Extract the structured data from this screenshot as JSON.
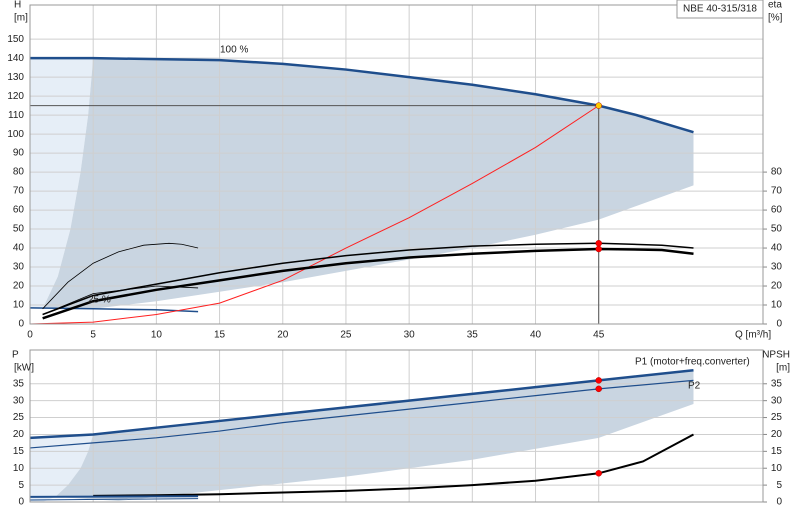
{
  "chart_data": [
    {
      "type": "line",
      "title": "NBE 40-315/318",
      "ylabel": "H",
      "yunit": "[m]",
      "y2label": "eta",
      "y2unit": "[%]",
      "xlabel": "Q [m³/h]",
      "annotations": [
        "100 %",
        "25 %"
      ],
      "xlim": [
        0,
        58
      ],
      "xticks": [
        0,
        5,
        10,
        15,
        20,
        25,
        30,
        35,
        40,
        45
      ],
      "xtick_labels": true,
      "ylim": [
        0,
        168
      ],
      "yticks": [
        0,
        10,
        20,
        30,
        40,
        50,
        60,
        70,
        80,
        90,
        100,
        110,
        120,
        130,
        140,
        150
      ],
      "y2lim": [
        0,
        168
      ],
      "y2ticks": [
        0,
        10,
        20,
        30,
        40,
        50,
        60,
        70,
        80
      ],
      "grid": true,
      "areas": [
        {
          "color": "#e6eef7",
          "x": [
            0,
            5,
            4.6,
            4,
            3.2,
            2.2,
            1,
            0
          ],
          "values": [
            140,
            140,
            110,
            80,
            50,
            25,
            8,
            8
          ]
        },
        {
          "color": "#c9d5e1",
          "x": [
            5,
            10,
            15,
            20,
            25,
            30,
            35,
            40,
            45,
            48,
            52.5,
            52.5,
            45,
            40,
            35,
            30,
            25,
            20,
            15,
            10,
            5,
            1,
            2.2,
            3.2,
            4,
            4.6
          ],
          "values": [
            140,
            139.5,
            139,
            137,
            134,
            130,
            126,
            121,
            115,
            110,
            101,
            73,
            55,
            47,
            40,
            34,
            28,
            22,
            17,
            12,
            8,
            8,
            25,
            50,
            80,
            110
          ]
        }
      ],
      "series": [
        {
          "color": "#1f4e8c",
          "width": 2.5,
          "x": [
            0,
            5,
            10,
            15,
            20,
            25,
            30,
            35,
            40,
            45,
            48,
            52.5
          ],
          "values": [
            140,
            140,
            139.5,
            139,
            137,
            134,
            130,
            126,
            121,
            115,
            110,
            101
          ]
        },
        {
          "color": "#1f4e8c",
          "width": 1.5,
          "x": [
            0,
            5,
            10,
            13.3
          ],
          "values": [
            8.5,
            8,
            7.5,
            6.5
          ]
        },
        {
          "color": "#555555",
          "width": 1,
          "x": [
            0,
            45
          ],
          "values": [
            115,
            115
          ]
        },
        {
          "color": "#555555",
          "width": 1,
          "x": [
            45,
            45
          ],
          "values": [
            115,
            0
          ]
        },
        {
          "color": "#ff2020",
          "width": 1,
          "x": [
            0,
            5,
            10,
            15,
            20,
            25,
            30,
            35,
            40,
            45
          ],
          "values": [
            0,
            1,
            5,
            11,
            23,
            40,
            56,
            74,
            93,
            115
          ]
        },
        {
          "color": "#000000",
          "width": 1.5,
          "axis": "y2",
          "x": [
            1,
            5,
            10,
            15,
            20,
            25,
            30,
            35,
            40,
            45,
            50,
            52.5
          ],
          "values": [
            5,
            15,
            21,
            27,
            32,
            36,
            39,
            41,
            42,
            42.5,
            41.5,
            40
          ]
        },
        {
          "color": "#000000",
          "width": 2.5,
          "axis": "y2",
          "x": [
            1,
            5,
            10,
            15,
            20,
            25,
            30,
            35,
            40,
            45,
            50,
            52.5
          ],
          "values": [
            3,
            12,
            18,
            23,
            28,
            32,
            35,
            37,
            38.5,
            39.5,
            39,
            37
          ]
        },
        {
          "color": "#000000",
          "width": 0.8,
          "axis": "y2",
          "x": [
            1,
            3,
            5,
            7,
            9,
            11,
            12,
            13.3
          ],
          "values": [
            8,
            22,
            32,
            38,
            41.5,
            42.5,
            42,
            40
          ]
        },
        {
          "color": "#000000",
          "width": 0.8,
          "axis": "y2",
          "x": [
            1,
            5,
            10,
            13.3
          ],
          "values": [
            5,
            16,
            20,
            19
          ]
        }
      ],
      "points": [
        {
          "x": 45,
          "y": 115,
          "color": "#ffcc00"
        },
        {
          "x": 45,
          "y": 42.5,
          "color": "#ff0000",
          "axis": "y2"
        },
        {
          "x": 45,
          "y": 39.5,
          "color": "#ff0000",
          "axis": "y2"
        }
      ]
    },
    {
      "type": "line",
      "ylabel": "P",
      "yunit": "[kW]",
      "y2label": "NPSH",
      "y2unit": "[m]",
      "annotations": [
        "P1 (motor+freq.converter)",
        "P2"
      ],
      "xlim": [
        0,
        58
      ],
      "xticks": [
        0,
        5,
        10,
        15,
        20,
        25,
        30,
        35,
        40,
        45
      ],
      "xtick_labels": false,
      "ylim": [
        0,
        45
      ],
      "yticks": [
        0,
        5,
        10,
        15,
        20,
        25,
        30,
        35
      ],
      "y2lim": [
        0,
        45
      ],
      "y2ticks": [
        0,
        5,
        10,
        15,
        20,
        25,
        30,
        35
      ],
      "grid": true,
      "areas": [
        {
          "color": "#e6eef7",
          "x": [
            0,
            5,
            4.6,
            4,
            3,
            2,
            1,
            0
          ],
          "values": [
            19,
            20,
            15,
            10,
            5,
            1.5,
            0,
            0
          ]
        },
        {
          "color": "#c9d5e1",
          "x": [
            5,
            10,
            15,
            20,
            25,
            30,
            35,
            40,
            45,
            52.5,
            52.5,
            45,
            35,
            25,
            15,
            10,
            7,
            2,
            3,
            4,
            4.6
          ],
          "values": [
            20,
            22,
            24,
            26,
            28,
            30,
            32,
            34,
            36,
            39,
            29,
            19,
            12.5,
            7.5,
            3.5,
            1.5,
            0.3,
            1.5,
            5,
            10,
            15
          ]
        }
      ],
      "series": [
        {
          "color": "#1f4e8c",
          "width": 2.5,
          "x": [
            0,
            5,
            10,
            15,
            20,
            25,
            30,
            35,
            40,
            45,
            52.5
          ],
          "values": [
            19,
            20,
            22,
            24,
            26,
            28,
            30,
            32,
            34,
            36,
            39
          ]
        },
        {
          "color": "#1f4e8c",
          "width": 1.2,
          "x": [
            0,
            5,
            10,
            15,
            20,
            25,
            30,
            35,
            40,
            45,
            52.5
          ],
          "values": [
            16,
            17.5,
            19,
            21,
            23.5,
            25.5,
            27.5,
            29.5,
            31.5,
            33.5,
            36
          ]
        },
        {
          "color": "#000000",
          "width": 2,
          "axis": "y2",
          "x": [
            5,
            10,
            15,
            20,
            25,
            30,
            35,
            40,
            45,
            48.5,
            52.5
          ],
          "values": [
            1.8,
            2,
            2.3,
            2.8,
            3.3,
            4,
            5,
            6.3,
            8.5,
            12,
            20
          ]
        },
        {
          "color": "#1f4e8c",
          "width": 2,
          "x": [
            0,
            13.3
          ],
          "values": [
            1.5,
            1.7
          ]
        },
        {
          "color": "#1f4e8c",
          "width": 1,
          "x": [
            0,
            13.3
          ],
          "values": [
            0.6,
            1
          ]
        }
      ],
      "points": [
        {
          "x": 45,
          "y": 36,
          "color": "#ff0000"
        },
        {
          "x": 45,
          "y": 33.5,
          "color": "#ff0000"
        },
        {
          "x": 45,
          "y": 8.5,
          "color": "#ff0000",
          "axis": "y2"
        }
      ]
    }
  ]
}
